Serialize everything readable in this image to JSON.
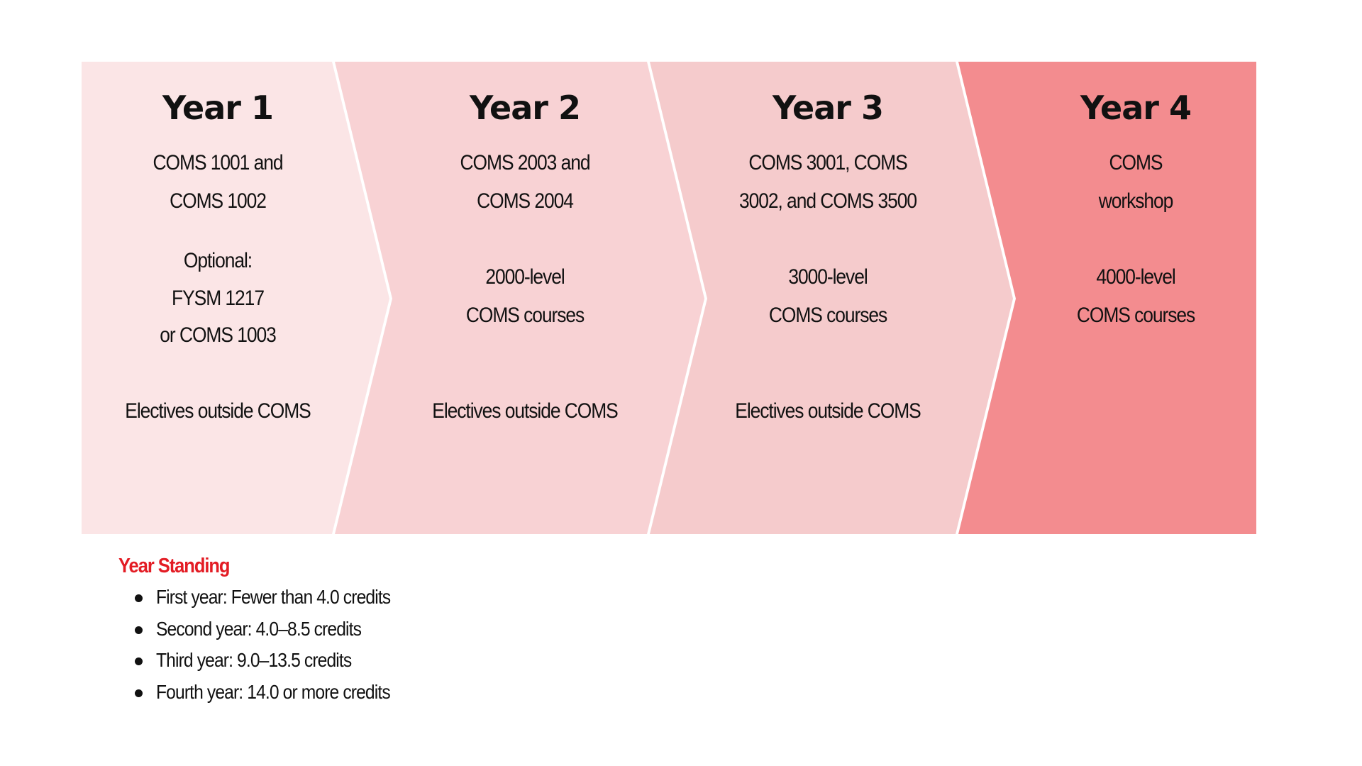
{
  "colors": {
    "year1": "#fbe5e6",
    "year2": "#f8d2d4",
    "year3": "#f5cbcc",
    "year4": "#f38c8f",
    "accent": "#e31c24"
  },
  "years": [
    {
      "title": "Year 1",
      "lines": [
        "COMS 1001 and",
        "COMS 1002",
        "Optional:",
        "FYSM 1217",
        "or COMS 1003",
        "Electives outside COMS"
      ]
    },
    {
      "title": "Year 2",
      "lines": [
        "COMS 2003 and",
        "COMS 2004",
        "2000-level",
        "COMS courses",
        "Electives outside COMS"
      ]
    },
    {
      "title": "Year 3",
      "lines": [
        "COMS 3001, COMS",
        "3002, and COMS 3500",
        "3000-level",
        "COMS courses",
        "Electives outside COMS"
      ]
    },
    {
      "title": "Year 4",
      "lines": [
        "COMS",
        "workshop",
        "4000-level",
        "COMS courses"
      ]
    }
  ],
  "legend": {
    "title": "Year Standing",
    "items": [
      "First year: Fewer than 4.0 credits",
      "Second year: 4.0–8.5 credits",
      "Third year: 9.0–13.5 credits",
      "Fourth year: 14.0 or more credits"
    ]
  }
}
